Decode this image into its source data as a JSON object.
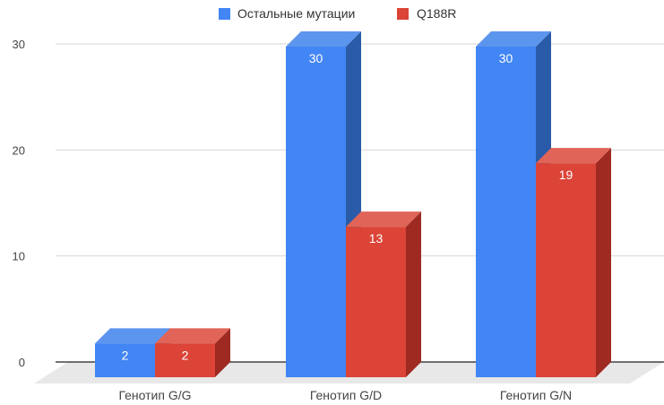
{
  "chart_data": {
    "type": "bar",
    "categories": [
      "Генотип G/G",
      "Генотип G/D",
      "Генотип G/N"
    ],
    "series": [
      {
        "name": "Остальные мутации",
        "values": [
          2,
          30,
          30
        ],
        "color": "#4285f4",
        "side_color": "#2a5ba8",
        "top_color": "#5c95ee"
      },
      {
        "name": "Q188R",
        "values": [
          2,
          13,
          19
        ],
        "color": "#db4437",
        "side_color": "#9e2a22",
        "top_color": "#e06458"
      }
    ],
    "y_ticks": [
      "0",
      "10",
      "20",
      "30"
    ],
    "ylim": [
      0,
      30
    ],
    "grid": true,
    "legend": "top-center",
    "data_labels": true,
    "style": "3d-column"
  }
}
